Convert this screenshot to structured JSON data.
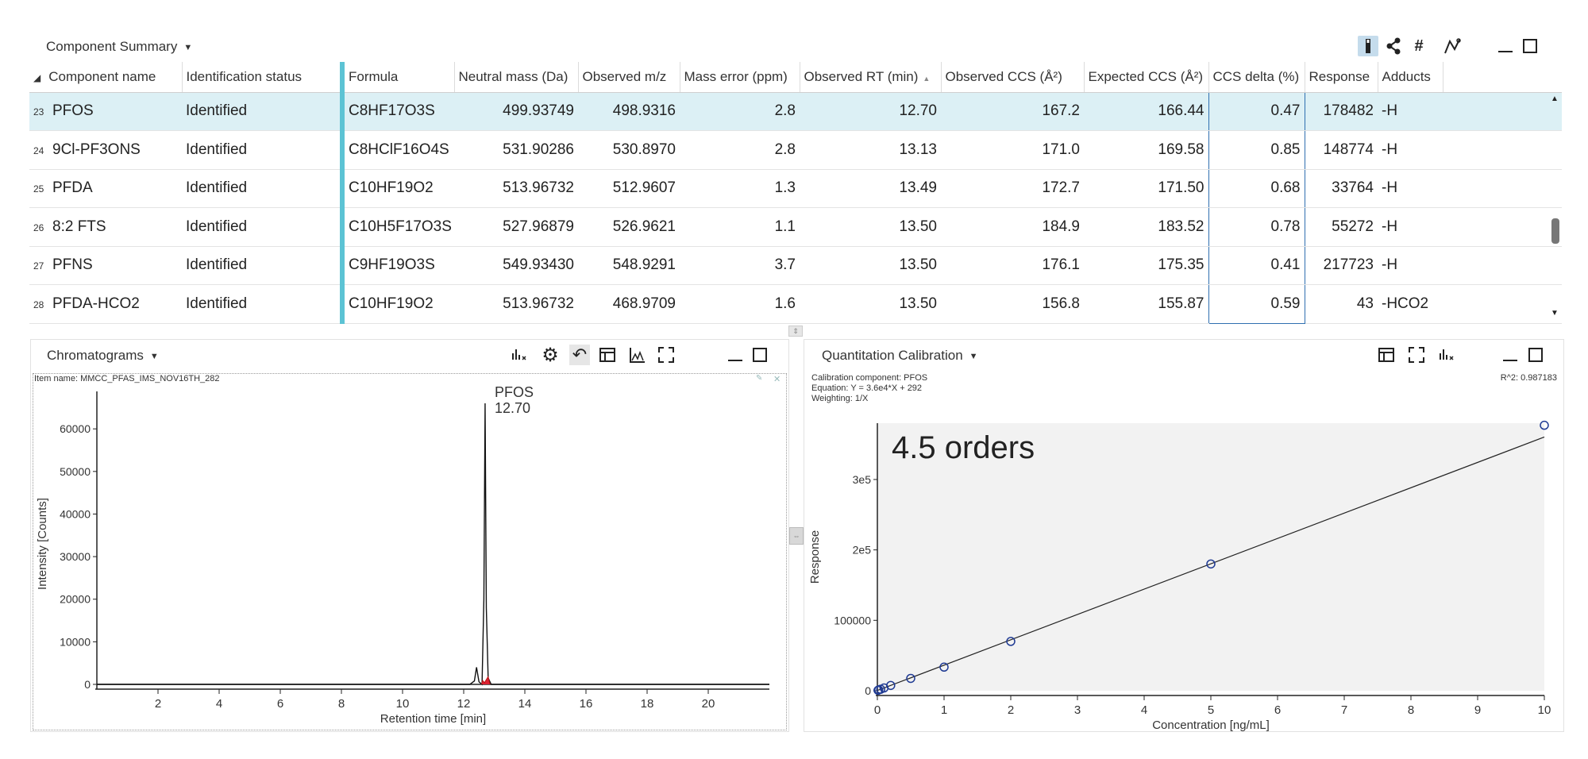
{
  "summary": {
    "title": "Component Summary",
    "columns": [
      "Component name",
      "Identification status",
      "Formula",
      "Neutral mass (Da)",
      "Observed m/z",
      "Mass error (ppm)",
      "Observed RT (min)",
      "Observed CCS (Å²)",
      "Expected CCS (Å²)",
      "CCS delta (%)",
      "Response",
      "Adducts"
    ],
    "rows": [
      {
        "num": "23",
        "name": "PFOS",
        "status": "Identified",
        "formula": "C8HF17O3S",
        "mass": "499.93749",
        "mz": "498.9316",
        "err": "2.8",
        "rt": "12.70",
        "occs": "167.2",
        "eccs": "166.44",
        "delta": "0.47",
        "resp": "178482",
        "add": "-H"
      },
      {
        "num": "24",
        "name": "9Cl-PF3ONS",
        "status": "Identified",
        "formula": "C8HClF16O4S",
        "mass": "531.90286",
        "mz": "530.8970",
        "err": "2.8",
        "rt": "13.13",
        "occs": "171.0",
        "eccs": "169.58",
        "delta": "0.85",
        "resp": "148774",
        "add": "-H"
      },
      {
        "num": "25",
        "name": "PFDA",
        "status": "Identified",
        "formula": "C10HF19O2",
        "mass": "513.96732",
        "mz": "512.9607",
        "err": "1.3",
        "rt": "13.49",
        "occs": "172.7",
        "eccs": "171.50",
        "delta": "0.68",
        "resp": "33764",
        "add": "-H"
      },
      {
        "num": "26",
        "name": "8:2 FTS",
        "status": "Identified",
        "formula": "C10H5F17O3S",
        "mass": "527.96879",
        "mz": "526.9621",
        "err": "1.1",
        "rt": "13.50",
        "occs": "184.9",
        "eccs": "183.52",
        "delta": "0.78",
        "resp": "55272",
        "add": "-H"
      },
      {
        "num": "27",
        "name": "PFNS",
        "status": "Identified",
        "formula": "C9HF19O3S",
        "mass": "549.93430",
        "mz": "548.9291",
        "err": "3.7",
        "rt": "13.50",
        "occs": "176.1",
        "eccs": "175.35",
        "delta": "0.41",
        "resp": "217723",
        "add": "-H"
      },
      {
        "num": "28",
        "name": "PFDA-HCO2",
        "status": "Identified",
        "formula": "C10HF19O2",
        "mass": "513.96732",
        "mz": "468.9709",
        "err": "1.6",
        "rt": "13.50",
        "occs": "156.8",
        "eccs": "155.87",
        "delta": "0.59",
        "resp": "43",
        "add": "-HCO2"
      }
    ]
  },
  "chromatogram": {
    "title": "Chromatograms",
    "item_name": "Item name: MMCC_PFAS_IMS_NOV16TH_282",
    "peak_label": "PFOS",
    "peak_rt": "12.70",
    "xlabel": "Retention time [min]",
    "ylabel": "Intensity [Counts]"
  },
  "calibration": {
    "title": "Quantitation Calibration",
    "component": "Calibration component: PFOS",
    "equation": "Equation: Y = 3.6e4*X + 292",
    "weighting": "Weighting: 1/X",
    "r2": "R^2: 0.987183",
    "annotation": "4.5 orders",
    "xlabel": "Concentration [ng/mL]",
    "ylabel": "Response"
  },
  "chart_data": [
    {
      "type": "line",
      "title": "",
      "xlabel": "Retention time [min]",
      "ylabel": "Intensity [Counts]",
      "xlim": [
        0,
        22
      ],
      "ylim": [
        0,
        66000
      ],
      "xticks": [
        2,
        4,
        6,
        8,
        10,
        12,
        14,
        16,
        18,
        20
      ],
      "yticks": [
        0,
        10000,
        20000,
        30000,
        40000,
        50000,
        60000
      ],
      "annotations": [
        {
          "text": "PFOS 12.70",
          "x": 12.7,
          "y": 66000
        }
      ],
      "series": [
        {
          "x": [
            0,
            12.2,
            12.35,
            12.42,
            12.5,
            12.6,
            12.66,
            12.7,
            12.74,
            12.8,
            12.9,
            13.1,
            22
          ],
          "y": [
            0,
            0,
            800,
            4000,
            600,
            0,
            20000,
            66000,
            18000,
            1500,
            0,
            0,
            0
          ]
        }
      ]
    },
    {
      "type": "scatter",
      "title": "",
      "xlabel": "Concentration [ng/mL]",
      "ylabel": "Response",
      "xlim": [
        0,
        10
      ],
      "ylim": [
        0,
        380000
      ],
      "xticks": [
        0,
        1,
        2,
        3,
        4,
        5,
        6,
        7,
        8,
        9,
        10
      ],
      "ytick_labels": [
        [
          "0",
          0
        ],
        [
          "100000",
          100000
        ],
        [
          "2e5",
          200000
        ],
        [
          "3e5",
          300000
        ]
      ],
      "fit": {
        "slope": 36000,
        "intercept": 292
      },
      "points_x": [
        0.01,
        0.02,
        0.05,
        0.1,
        0.2,
        0.5,
        1,
        2,
        5,
        10
      ],
      "points_y": [
        600,
        1200,
        2100,
        3900,
        7500,
        17500,
        33500,
        70000,
        180000,
        377000
      ]
    }
  ],
  "colors": {
    "accent": "#5cc3d4",
    "selection": "#dcf0f5",
    "ccs_box": "#2f6fb0",
    "points": "#1f3a93"
  },
  "icons": [
    "filter-icon",
    "share-icon",
    "hash-icon",
    "trend-icon",
    "minimize-icon",
    "maximize-icon",
    "peak-icon",
    "gear-icon",
    "undo-icon",
    "table-icon",
    "chart-icon",
    "expand-icon"
  ]
}
